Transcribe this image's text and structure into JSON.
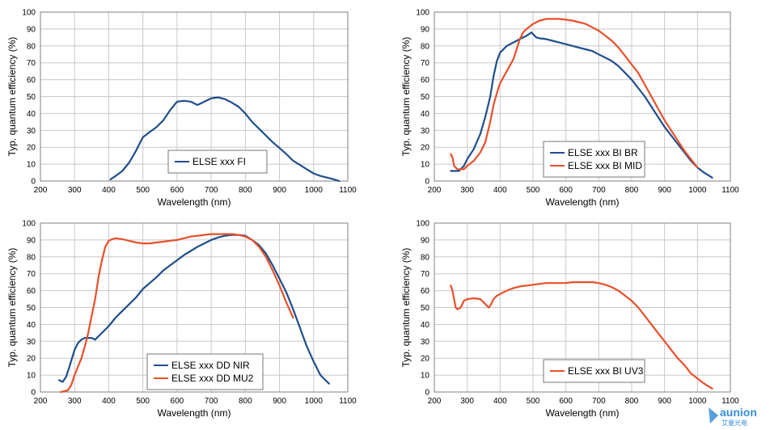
{
  "colors": {
    "blue": "#1f4e8c",
    "orange": "#e8502a",
    "logo": "#3a8fd6"
  },
  "watermark_text": "aunion",
  "watermark_subtext": "艾量光电",
  "chart_data": [
    {
      "type": "line",
      "xlabel": "Wavelength (nm)",
      "ylabel": "Typ. quantum efficiency (%)",
      "xlim": [
        200,
        1100
      ],
      "ylim": [
        0,
        100
      ],
      "xticks": [
        200,
        300,
        400,
        500,
        600,
        700,
        800,
        900,
        1000,
        1100
      ],
      "yticks": [
        0,
        10,
        20,
        30,
        40,
        50,
        60,
        70,
        80,
        90,
        100
      ],
      "grid": true,
      "legend_position": "lower-center",
      "series": [
        {
          "name": "ELSE xxx FI",
          "color": "#1f4e8c",
          "x": [
            405,
            420,
            440,
            460,
            480,
            500,
            520,
            540,
            560,
            580,
            600,
            620,
            640,
            660,
            680,
            700,
            720,
            740,
            760,
            780,
            800,
            820,
            840,
            860,
            880,
            900,
            920,
            940,
            960,
            980,
            1000,
            1020,
            1040,
            1060,
            1075
          ],
          "y": [
            1,
            3,
            6,
            11,
            18,
            26,
            29,
            32,
            36,
            42,
            47,
            47.5,
            47,
            45,
            47,
            49,
            49.5,
            48.5,
            46.5,
            44,
            40,
            35,
            31,
            27,
            23,
            19.5,
            16,
            12,
            9.5,
            7,
            4.5,
            3,
            2,
            1,
            0
          ]
        }
      ]
    },
    {
      "type": "line",
      "xlabel": "Wavelength (nm)",
      "ylabel": "Typ. quantum efficiency (%)",
      "xlim": [
        200,
        1100
      ],
      "ylim": [
        0,
        100
      ],
      "xticks": [
        200,
        300,
        400,
        500,
        600,
        700,
        800,
        900,
        1000,
        1100
      ],
      "yticks": [
        0,
        10,
        20,
        30,
        40,
        50,
        60,
        70,
        80,
        90,
        100
      ],
      "grid": true,
      "legend_position": "lower-right",
      "series": [
        {
          "name": "ELSE xxx BI BR",
          "color": "#1f4e8c",
          "x": [
            250,
            260,
            275,
            290,
            300,
            320,
            340,
            355,
            370,
            380,
            390,
            400,
            420,
            440,
            460,
            480,
            495,
            500,
            510,
            520,
            540,
            560,
            580,
            600,
            620,
            640,
            660,
            680,
            700,
            720,
            740,
            760,
            780,
            800,
            820,
            840,
            860,
            880,
            900,
            920,
            940,
            960,
            980,
            1000,
            1020,
            1045
          ],
          "y": [
            6,
            6,
            6,
            9,
            13,
            19,
            28,
            38,
            50,
            62,
            71,
            76,
            80,
            82,
            84,
            86,
            88,
            87,
            85,
            84.5,
            84,
            83,
            82,
            81,
            80,
            79,
            78,
            77,
            75,
            73,
            71,
            68,
            64,
            60,
            55,
            50,
            44,
            38,
            32,
            27,
            22,
            17,
            12,
            8,
            5,
            2
          ]
        },
        {
          "name": "ELSE xxx BI MID",
          "color": "#e8502a",
          "x": [
            250,
            255,
            260,
            270,
            280,
            290,
            300,
            320,
            340,
            355,
            370,
            380,
            390,
            400,
            420,
            440,
            450,
            460,
            470,
            480,
            500,
            520,
            540,
            560,
            580,
            600,
            620,
            640,
            660,
            680,
            700,
            720,
            740,
            760,
            780,
            800,
            820,
            840,
            860,
            880,
            900,
            920,
            940,
            960,
            980,
            1000
          ],
          "y": [
            16,
            14,
            9,
            7,
            7,
            7,
            9,
            12,
            17,
            23,
            35,
            45,
            52,
            58,
            65,
            72,
            78,
            84,
            88,
            90,
            93,
            95,
            96,
            96,
            96,
            95.5,
            95,
            94,
            93,
            91,
            89,
            86,
            83,
            79,
            74,
            69,
            64,
            57,
            50,
            43,
            36,
            30,
            24,
            18,
            13,
            8
          ]
        }
      ]
    },
    {
      "type": "line",
      "xlabel": "Wavelength (nm)",
      "ylabel": "Typ. quantum efficiency (%)",
      "xlim": [
        200,
        1100
      ],
      "ylim": [
        0,
        100
      ],
      "xticks": [
        200,
        300,
        400,
        500,
        600,
        700,
        800,
        900,
        1000,
        1100
      ],
      "yticks": [
        0,
        10,
        20,
        30,
        40,
        50,
        60,
        70,
        80,
        90,
        100
      ],
      "grid": true,
      "legend_position": "lower-center",
      "series": [
        {
          "name": "ELSE xxx DD NIR",
          "color": "#1f4e8c",
          "x": [
            255,
            265,
            275,
            285,
            300,
            310,
            320,
            330,
            340,
            350,
            360,
            370,
            380,
            400,
            420,
            440,
            460,
            480,
            500,
            520,
            540,
            560,
            580,
            600,
            620,
            640,
            660,
            680,
            700,
            720,
            740,
            760,
            780,
            800,
            820,
            840,
            860,
            880,
            900,
            920,
            940,
            960,
            980,
            1000,
            1020,
            1045
          ],
          "y": [
            7,
            6,
            9,
            15,
            25,
            29,
            31,
            32,
            32,
            32,
            31,
            33,
            35,
            39,
            44,
            48,
            52,
            56,
            61,
            64.5,
            68,
            72,
            75,
            78,
            81,
            83.5,
            86,
            88,
            90,
            91.5,
            92.5,
            93,
            93,
            92.5,
            90,
            87,
            82,
            75,
            67,
            59,
            49,
            38,
            27,
            18,
            10,
            5
          ]
        },
        {
          "name": "ELSE xxx DD MU2",
          "color": "#e8502a",
          "x": [
            260,
            270,
            280,
            290,
            300,
            310,
            320,
            330,
            340,
            350,
            360,
            370,
            380,
            390,
            400,
            410,
            420,
            440,
            460,
            480,
            500,
            520,
            540,
            560,
            580,
            600,
            620,
            640,
            660,
            680,
            700,
            720,
            740,
            760,
            780,
            800,
            820,
            840,
            860,
            880,
            900,
            920,
            940
          ],
          "y": [
            0,
            0.5,
            1,
            4,
            10,
            15,
            20,
            27,
            35,
            45,
            55,
            68,
            78,
            86,
            89.5,
            90.5,
            91,
            90.5,
            89.5,
            88.5,
            88,
            88,
            88.5,
            89,
            89.5,
            90,
            91,
            92,
            92.5,
            93,
            93.5,
            93.5,
            93.5,
            93.5,
            93,
            92,
            90,
            86,
            80,
            72,
            63,
            53,
            44
          ]
        }
      ]
    },
    {
      "type": "line",
      "xlabel": "Wavelength (nm)",
      "ylabel": "Typ. quantum efficiency (%)",
      "xlim": [
        200,
        1100
      ],
      "ylim": [
        0,
        100
      ],
      "xticks": [
        200,
        300,
        400,
        500,
        600,
        700,
        800,
        900,
        1000,
        1100
      ],
      "yticks": [
        0,
        10,
        20,
        30,
        40,
        50,
        60,
        70,
        80,
        90,
        100
      ],
      "grid": true,
      "legend_position": "lower-right",
      "series": [
        {
          "name": "ELSE xxx BI UV3",
          "color": "#e8502a",
          "x": [
            250,
            255,
            260,
            265,
            270,
            280,
            290,
            300,
            320,
            340,
            350,
            360,
            365,
            370,
            380,
            390,
            400,
            420,
            440,
            460,
            480,
            500,
            520,
            540,
            560,
            580,
            600,
            620,
            640,
            660,
            680,
            700,
            720,
            740,
            760,
            780,
            800,
            820,
            840,
            860,
            880,
            900,
            920,
            940,
            960,
            980,
            1000,
            1020,
            1045
          ],
          "y": [
            63,
            60,
            55,
            50,
            49,
            50,
            54,
            55,
            55.5,
            55,
            53,
            51,
            50,
            51,
            55,
            57,
            58,
            60,
            61.5,
            62.5,
            63,
            63.5,
            64,
            64.5,
            64.5,
            64.5,
            64.5,
            65,
            65,
            65,
            65,
            64.5,
            63.5,
            62,
            60,
            57,
            54,
            50,
            45,
            40,
            35,
            30,
            25,
            20,
            16,
            11,
            8,
            5,
            2
          ]
        }
      ]
    }
  ]
}
